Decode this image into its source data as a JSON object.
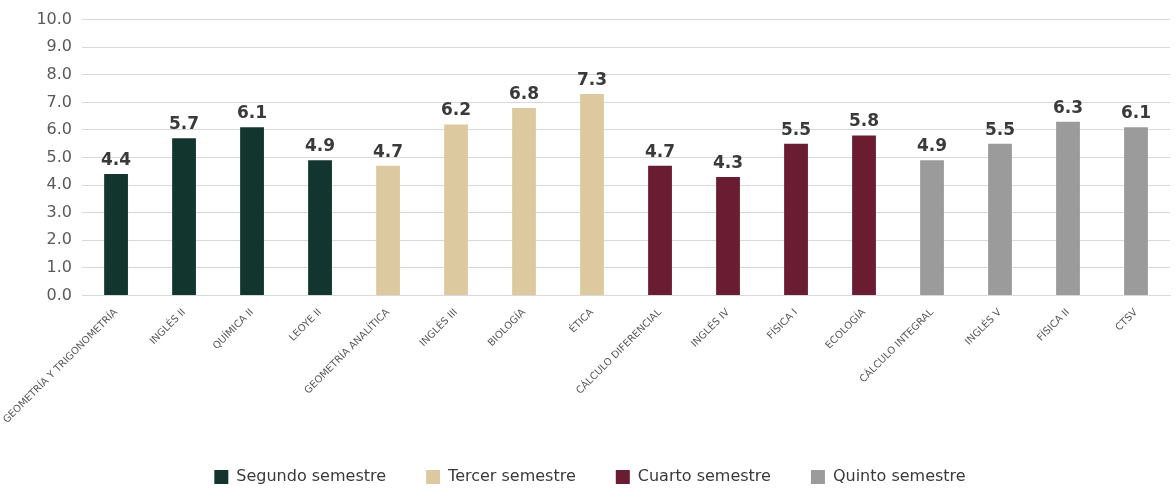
{
  "chart_data": {
    "type": "bar",
    "categories": [
      "GEOMETRÍA Y TRIGONOMETRÍA",
      "INGLÉS II",
      "QUÍMICA II",
      "LEOYE II",
      "GEOMETRÍA ANALÍTICA",
      "INGLÉS III",
      "BIOLOGÍA",
      "ÉTICA",
      "CÁLCULO DIFERENCIAL",
      "INGLÉS IV",
      "FÍSICA I",
      "ECOLOGÍA",
      "CÁLCULO INTEGRAL",
      "INGLÉS V",
      "FÍSICA II",
      "CTSV"
    ],
    "series": [
      {
        "name": "Segundo semestre",
        "color": "#12352e",
        "values": [
          4.4,
          5.7,
          6.1,
          4.9,
          null,
          null,
          null,
          null,
          null,
          null,
          null,
          null,
          null,
          null,
          null,
          null
        ]
      },
      {
        "name": "Tercer semestre",
        "color": "#ddc9a0",
        "values": [
          null,
          null,
          null,
          null,
          4.7,
          6.2,
          6.8,
          7.3,
          null,
          null,
          null,
          null,
          null,
          null,
          null,
          null
        ]
      },
      {
        "name": "Cuarto semestre",
        "color": "#691c32",
        "values": [
          null,
          null,
          null,
          null,
          null,
          null,
          null,
          null,
          4.7,
          4.3,
          5.5,
          5.8,
          null,
          null,
          null,
          null
        ]
      },
      {
        "name": "Quinto semestre",
        "color": "#9b9b9b",
        "values": [
          null,
          null,
          null,
          null,
          null,
          null,
          null,
          null,
          null,
          null,
          null,
          null,
          4.9,
          5.5,
          6.3,
          6.1
        ]
      }
    ],
    "ylim": [
      0,
      10
    ],
    "yticks": [
      {
        "value": 0,
        "label": "0.0"
      },
      {
        "value": 1,
        "label": "1.0"
      },
      {
        "value": 2,
        "label": "2.0"
      },
      {
        "value": 3,
        "label": "3.0"
      },
      {
        "value": 4,
        "label": "4.0"
      },
      {
        "value": 5,
        "label": "5.0"
      },
      {
        "value": 6,
        "label": "6.0"
      },
      {
        "value": 7,
        "label": "7.0"
      },
      {
        "value": 8,
        "label": "8.0"
      },
      {
        "value": 9,
        "label": "9.0"
      },
      {
        "value": 10,
        "label": "10.0"
      }
    ],
    "grid": "y",
    "legend": "bottom",
    "data_labels": true
  }
}
